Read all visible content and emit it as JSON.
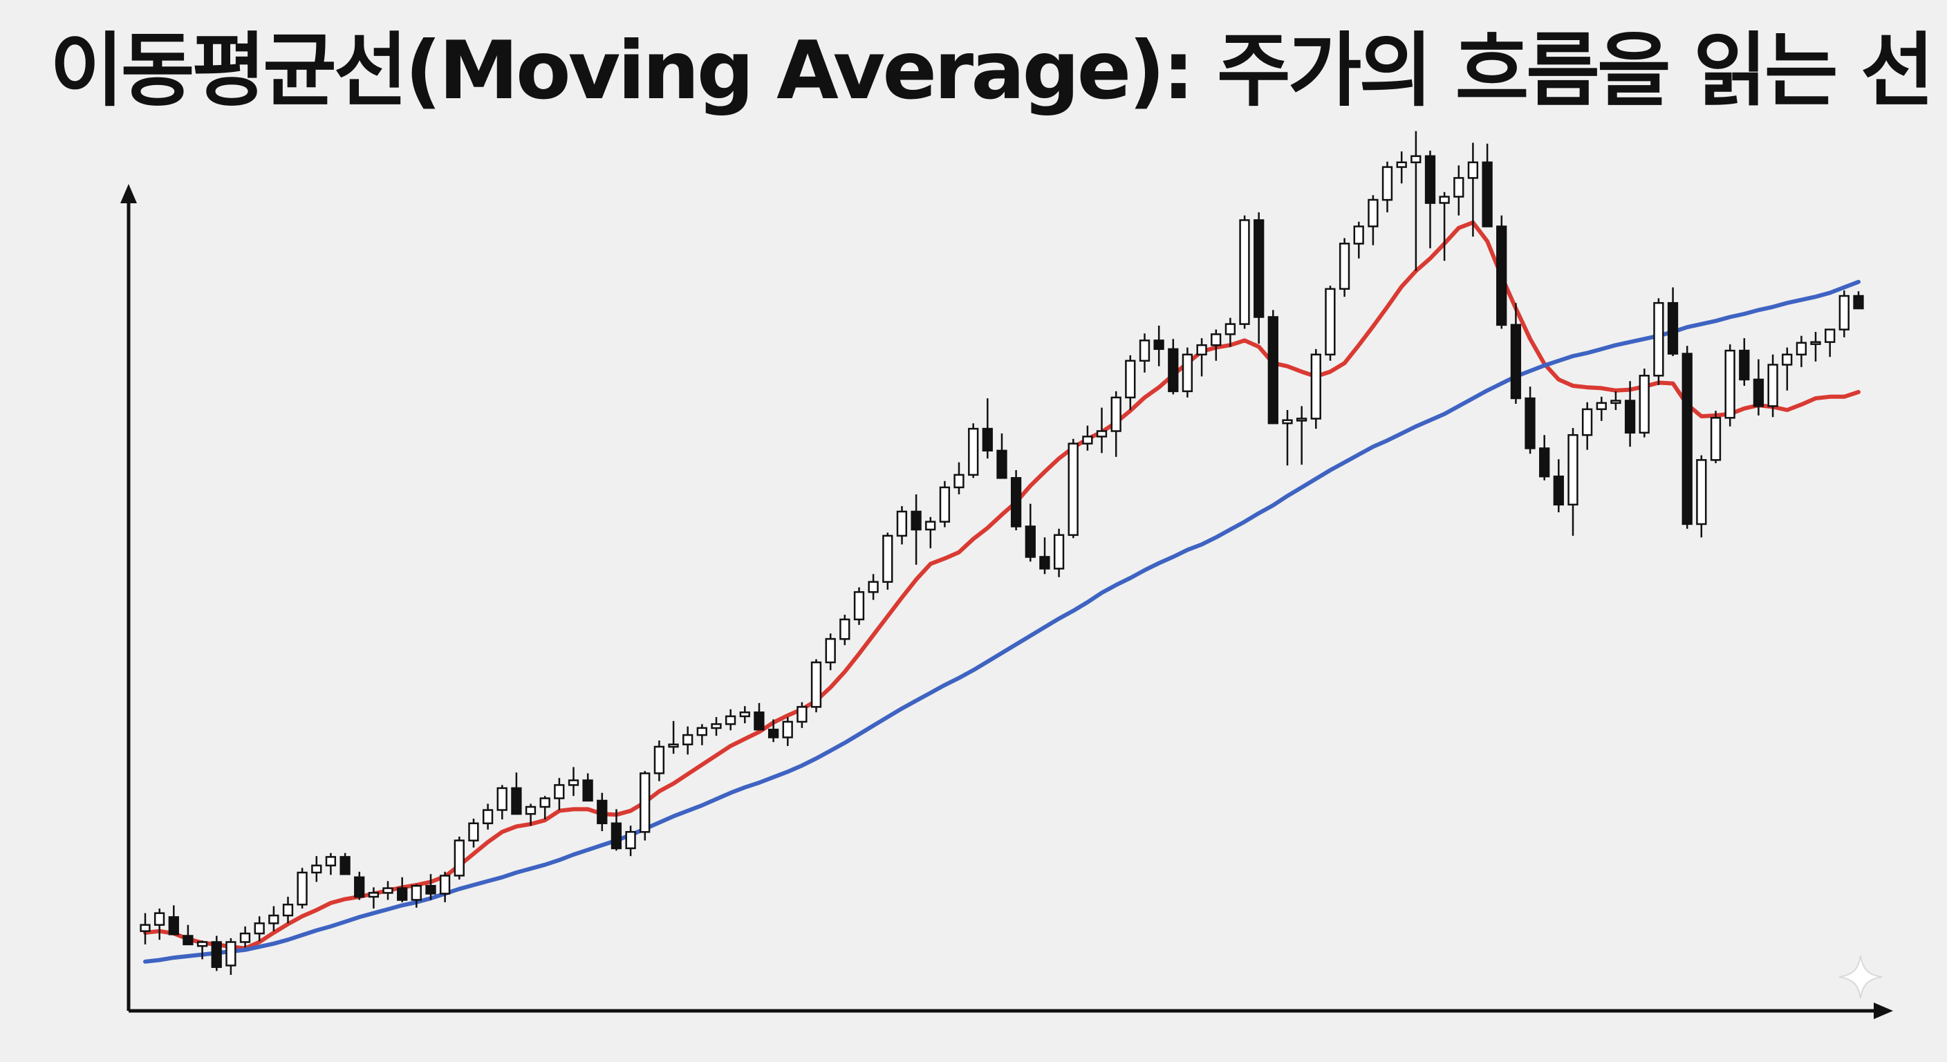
{
  "title": "이동평균선(Moving Average): 주가의 흐름을 읽는 선",
  "icons": {
    "watermark": "sparkle-icon"
  },
  "colors": {
    "background": "#f0f0f0",
    "axis": "#111111",
    "candle_up_fill": "#ffffff",
    "candle_down_fill": "#111111",
    "short_ma": "#d93a32",
    "long_ma": "#3e63c2"
  },
  "chart_data": {
    "type": "candlestick",
    "title": "이동평균선(Moving Average): 주가의 흐름을 읽는 선",
    "xlabel": "",
    "ylabel": "",
    "axis_ticks": false,
    "grid": false,
    "legend": false,
    "ylim": [
      0,
      100
    ],
    "x": [
      1,
      2,
      3,
      4,
      5,
      6,
      7,
      8,
      9,
      10,
      11,
      12,
      13,
      14,
      15,
      16,
      17,
      18,
      19,
      20,
      21,
      22,
      23,
      24,
      25,
      26,
      27,
      28,
      29,
      30,
      31,
      32,
      33,
      34,
      35,
      36,
      37,
      38,
      39,
      40,
      41,
      42,
      43,
      44,
      45,
      46,
      47,
      48,
      49,
      50,
      51,
      52,
      53,
      54,
      55,
      56,
      57,
      58,
      59,
      60,
      61,
      62,
      63,
      64,
      65,
      66,
      67,
      68,
      69,
      70,
      71,
      72,
      73,
      74,
      75,
      76,
      77,
      78,
      79,
      80,
      81,
      82,
      83,
      84,
      85,
      86,
      87,
      88,
      89,
      90,
      91,
      92,
      93,
      94,
      95,
      96,
      97,
      98,
      99,
      100,
      101,
      102,
      103,
      104,
      105,
      106,
      107,
      108,
      109,
      110,
      111,
      112,
      113,
      114,
      115,
      116,
      117,
      118,
      119,
      120,
      121
    ],
    "ohlc": [
      [
        5.6,
        7.9,
        3.9,
        6.4
      ],
      [
        6.4,
        8.5,
        4.5,
        7.9
      ],
      [
        7.4,
        8.9,
        5.3,
        5.2
      ],
      [
        5.0,
        6.4,
        3.9,
        3.9
      ],
      [
        3.7,
        4.4,
        2.0,
        4.2
      ],
      [
        4.2,
        5.0,
        0.5,
        1.0
      ],
      [
        1.2,
        4.7,
        0.0,
        4.2
      ],
      [
        4.2,
        6.2,
        3.5,
        5.3
      ],
      [
        5.3,
        7.5,
        4.3,
        6.6
      ],
      [
        6.6,
        8.8,
        5.6,
        7.6
      ],
      [
        7.6,
        10.0,
        6.6,
        9.0
      ],
      [
        9.0,
        13.7,
        8.5,
        13.1
      ],
      [
        13.1,
        15.2,
        11.9,
        14.0
      ],
      [
        14.0,
        15.6,
        12.8,
        15.1
      ],
      [
        15.1,
        15.6,
        12.9,
        12.9
      ],
      [
        12.5,
        13.2,
        9.6,
        10.0
      ],
      [
        10.0,
        11.2,
        8.5,
        10.5
      ],
      [
        10.5,
        12.0,
        9.6,
        11.1
      ],
      [
        11.1,
        12.5,
        9.3,
        9.6
      ],
      [
        9.6,
        11.6,
        8.6,
        11.4
      ],
      [
        11.4,
        12.9,
        9.6,
        10.4
      ],
      [
        10.4,
        13.2,
        9.3,
        12.7
      ],
      [
        12.7,
        17.7,
        12.2,
        17.2
      ],
      [
        17.2,
        20.0,
        16.3,
        19.4
      ],
      [
        19.4,
        21.9,
        18.6,
        21.1
      ],
      [
        21.1,
        24.3,
        19.9,
        23.9
      ],
      [
        23.9,
        25.9,
        20.5,
        20.6
      ],
      [
        20.6,
        21.9,
        19.1,
        21.5
      ],
      [
        21.5,
        22.9,
        19.9,
        22.6
      ],
      [
        22.6,
        25.2,
        21.1,
        24.3
      ],
      [
        24.3,
        26.6,
        22.9,
        24.9
      ],
      [
        24.9,
        25.8,
        22.7,
        22.3
      ],
      [
        22.3,
        23.3,
        18.4,
        19.4
      ],
      [
        19.4,
        21.2,
        15.9,
        16.2
      ],
      [
        16.2,
        19.1,
        15.2,
        18.3
      ],
      [
        18.3,
        26.1,
        17.2,
        25.8
      ],
      [
        25.8,
        30.0,
        24.8,
        29.2
      ],
      [
        29.2,
        32.5,
        28.3,
        29.5
      ],
      [
        29.5,
        31.8,
        28.2,
        30.7
      ],
      [
        30.7,
        32.1,
        29.4,
        31.6
      ],
      [
        31.6,
        33.0,
        30.6,
        32.1
      ],
      [
        32.1,
        34.0,
        31.3,
        33.1
      ],
      [
        33.1,
        34.4,
        32.2,
        33.6
      ],
      [
        33.6,
        34.8,
        31.8,
        31.4
      ],
      [
        31.4,
        32.7,
        29.8,
        30.4
      ],
      [
        30.4,
        33.0,
        29.3,
        32.4
      ],
      [
        32.4,
        34.9,
        31.6,
        34.3
      ],
      [
        34.3,
        40.4,
        33.6,
        40.0
      ],
      [
        40.0,
        43.7,
        39.0,
        43.0
      ],
      [
        43.0,
        46.1,
        42.2,
        45.5
      ],
      [
        45.5,
        49.6,
        44.8,
        49.0
      ],
      [
        49.0,
        51.3,
        48.0,
        50.3
      ],
      [
        50.3,
        56.6,
        49.3,
        56.2
      ],
      [
        56.2,
        60.0,
        55.1,
        59.3
      ],
      [
        59.3,
        61.5,
        52.5,
        57.0
      ],
      [
        57.0,
        58.6,
        54.6,
        58.0
      ],
      [
        58.0,
        63.2,
        57.3,
        62.4
      ],
      [
        62.4,
        65.6,
        61.5,
        64.0
      ],
      [
        64.0,
        70.6,
        63.6,
        69.9
      ],
      [
        69.9,
        73.8,
        66.1,
        67.1
      ],
      [
        67.1,
        69.3,
        63.8,
        63.6
      ],
      [
        63.6,
        64.6,
        56.9,
        57.4
      ],
      [
        57.4,
        60.3,
        52.9,
        53.5
      ],
      [
        53.5,
        56.0,
        51.3,
        52.0
      ],
      [
        52.0,
        57.1,
        50.9,
        56.3
      ],
      [
        56.3,
        68.6,
        55.9,
        68.0
      ],
      [
        68.0,
        70.3,
        67.1,
        68.9
      ],
      [
        68.9,
        72.6,
        66.8,
        69.6
      ],
      [
        69.6,
        74.7,
        66.3,
        73.9
      ],
      [
        73.9,
        79.3,
        72.3,
        78.6
      ],
      [
        78.6,
        82.1,
        77.1,
        81.2
      ],
      [
        81.2,
        83.1,
        77.9,
        80.1
      ],
      [
        80.1,
        81.4,
        74.3,
        74.7
      ],
      [
        74.7,
        80.3,
        73.9,
        79.4
      ],
      [
        79.4,
        81.5,
        76.6,
        80.6
      ],
      [
        80.6,
        82.6,
        78.6,
        82.0
      ],
      [
        82.0,
        84.1,
        80.4,
        83.3
      ],
      [
        83.3,
        97.2,
        82.7,
        96.6
      ],
      [
        96.6,
        97.6,
        80.8,
        84.2
      ],
      [
        84.2,
        85.1,
        70.5,
        70.6
      ],
      [
        70.6,
        72.3,
        65.2,
        71.0
      ],
      [
        71.0,
        72.8,
        65.3,
        71.2
      ],
      [
        71.2,
        80.1,
        69.9,
        79.4
      ],
      [
        79.4,
        88.2,
        78.6,
        87.8
      ],
      [
        87.8,
        94.3,
        86.8,
        93.6
      ],
      [
        93.6,
        96.4,
        91.7,
        95.8
      ],
      [
        95.8,
        99.8,
        93.4,
        99.2
      ],
      [
        99.2,
        104.1,
        97.6,
        103.4
      ],
      [
        103.4,
        105.4,
        101.3,
        104.0
      ],
      [
        104.0,
        108.0,
        90.1,
        104.8
      ],
      [
        104.8,
        105.5,
        93.0,
        98.8
      ],
      [
        98.8,
        100.2,
        91.4,
        99.6
      ],
      [
        99.6,
        103.6,
        97.2,
        102.0
      ],
      [
        102.0,
        106.5,
        94.5,
        104.0
      ],
      [
        104.0,
        106.4,
        96.6,
        95.8
      ],
      [
        95.8,
        97.2,
        82.7,
        83.2
      ],
      [
        83.2,
        86.0,
        73.1,
        73.8
      ],
      [
        73.8,
        75.3,
        66.7,
        67.4
      ],
      [
        67.4,
        69.1,
        63.3,
        63.8
      ],
      [
        63.8,
        66.0,
        59.2,
        60.2
      ],
      [
        60.2,
        70.0,
        56.2,
        69.1
      ],
      [
        69.1,
        73.3,
        67.2,
        72.4
      ],
      [
        72.4,
        74.0,
        70.9,
        73.2
      ],
      [
        73.2,
        74.7,
        72.3,
        73.5
      ],
      [
        73.5,
        76.0,
        67.6,
        69.4
      ],
      [
        69.4,
        77.6,
        68.8,
        76.7
      ],
      [
        76.7,
        86.6,
        75.5,
        86.0
      ],
      [
        86.0,
        88.0,
        79.2,
        79.5
      ],
      [
        79.5,
        80.5,
        57.1,
        57.7
      ],
      [
        57.7,
        66.5,
        56.0,
        65.9
      ],
      [
        65.9,
        72.2,
        65.5,
        71.3
      ],
      [
        71.3,
        80.7,
        70.2,
        79.9
      ],
      [
        79.9,
        81.5,
        75.4,
        76.2
      ],
      [
        76.2,
        78.8,
        71.6,
        72.8
      ],
      [
        72.8,
        79.4,
        71.4,
        78.1
      ],
      [
        78.1,
        80.3,
        74.8,
        79.4
      ],
      [
        79.4,
        81.8,
        77.8,
        80.9
      ],
      [
        80.9,
        82.3,
        78.5,
        81.0
      ],
      [
        81.0,
        82.7,
        79.1,
        82.6
      ],
      [
        82.6,
        87.6,
        81.6,
        86.9
      ],
      [
        86.9,
        87.5,
        85.3,
        85.3
      ]
    ],
    "series": [
      {
        "type": "line",
        "values": [
          5.4,
          5.6,
          5.3,
          4.6,
          4.1,
          3.9,
          3.6,
          3.4,
          4.2,
          5.4,
          6.5,
          7.5,
          8.3,
          9.2,
          9.7,
          10.0,
          10.4,
          10.8,
          11.2,
          11.5,
          11.9,
          12.6,
          14.0,
          15.5,
          17.0,
          18.3,
          19.0,
          19.3,
          19.8,
          21.0,
          21.2,
          21.2,
          20.6,
          20.5,
          21.0,
          22.1,
          23.5,
          24.5,
          25.7,
          26.9,
          28.1,
          29.3,
          30.2,
          31.1,
          32.3,
          33.2,
          34.0,
          35.1,
          36.8,
          38.8,
          41.1,
          43.5,
          45.9,
          48.3,
          50.6,
          52.6,
          53.3,
          54.1,
          55.8,
          57.2,
          58.9,
          60.5,
          62.6,
          64.4,
          66.1,
          67.5,
          68.6,
          69.5,
          70.7,
          72.2,
          73.9,
          75.2,
          76.8,
          78.3,
          79.8,
          80.3,
          80.6,
          81.2,
          80.4,
          78.3,
          77.9,
          77.2,
          76.6,
          77.2,
          78.3,
          80.6,
          83.0,
          85.5,
          88.1,
          90.1,
          91.7,
          93.6,
          95.6,
          96.3,
          93.9,
          89.4,
          85.3,
          81.4,
          78.2,
          76.2,
          75.4,
          75.2,
          75.1,
          74.8,
          74.9,
          75.3,
          75.8,
          75.7,
          73.0,
          71.5,
          71.6,
          71.8,
          72.5,
          72.9,
          72.7,
          72.3,
          73.0,
          73.8,
          74.0,
          74.0,
          74.6
        ]
      },
      {
        "type": "line",
        "values": [
          1.7,
          1.9,
          2.2,
          2.4,
          2.6,
          2.8,
          3.0,
          3.2,
          3.6,
          4.0,
          4.5,
          5.1,
          5.7,
          6.2,
          6.8,
          7.4,
          7.9,
          8.4,
          8.9,
          9.3,
          9.8,
          10.4,
          11.0,
          11.5,
          12.0,
          12.5,
          13.1,
          13.6,
          14.1,
          14.7,
          15.4,
          16.0,
          16.6,
          17.2,
          17.9,
          18.7,
          19.5,
          20.3,
          21.0,
          21.7,
          22.5,
          23.3,
          24.0,
          24.6,
          25.3,
          26.0,
          26.8,
          27.7,
          28.7,
          29.7,
          30.8,
          31.9,
          33.0,
          34.1,
          35.1,
          36.1,
          37.1,
          38.0,
          39.0,
          40.1,
          41.2,
          42.3,
          43.4,
          44.5,
          45.6,
          46.6,
          47.7,
          48.9,
          49.9,
          50.8,
          51.8,
          52.7,
          53.5,
          54.4,
          55.1,
          56.0,
          57.0,
          58.0,
          59.1,
          60.1,
          61.3,
          62.4,
          63.5,
          64.6,
          65.6,
          66.6,
          67.6,
          68.4,
          69.3,
          70.2,
          71.0,
          71.8,
          72.8,
          73.8,
          74.8,
          75.7,
          76.6,
          77.3,
          78.0,
          78.6,
          79.2,
          79.6,
          80.1,
          80.6,
          81.0,
          81.4,
          81.8,
          82.3,
          82.9,
          83.3,
          83.7,
          84.2,
          84.6,
          85.1,
          85.5,
          86.0,
          86.4,
          86.8,
          87.3,
          88.0,
          88.7
        ]
      }
    ]
  }
}
